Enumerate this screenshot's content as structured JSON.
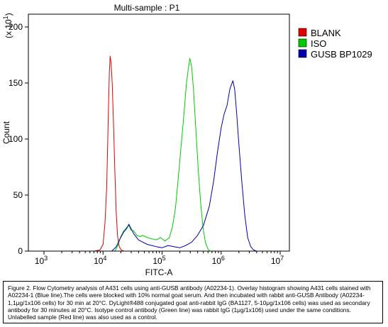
{
  "chart_data": {
    "type": "line",
    "title": "Multi-sample : P1",
    "xlabel": "FITC-A",
    "ylabel": "Count",
    "y_multiplier_label": "(x 10",
    "y_multiplier_exp": "1",
    "y_multiplier_close": ")",
    "x_scale": "log",
    "xlim": [
      1000,
      10000000
    ],
    "ylim": [
      0,
      200
    ],
    "y_ticks": [
      0,
      50,
      100,
      150,
      200
    ],
    "x_ticks": [
      {
        "value": 1000,
        "base": "10",
        "exp": "3"
      },
      {
        "value": 10000,
        "base": "10",
        "exp": "4"
      },
      {
        "value": 100000,
        "base": "10",
        "exp": "5"
      },
      {
        "value": 1000000,
        "base": "10",
        "exp": "6"
      },
      {
        "value": 10000000,
        "base": "10",
        "exp": "7"
      }
    ],
    "legend_position": "top-right",
    "series": [
      {
        "name": "BLANK",
        "color": "#e00000",
        "points": [
          [
            7100,
            0
          ],
          [
            8900,
            1
          ],
          [
            10000,
            6
          ],
          [
            10800,
            25
          ],
          [
            11500,
            55
          ],
          [
            12000,
            95
          ],
          [
            12400,
            130
          ],
          [
            12800,
            160
          ],
          [
            13200,
            174
          ],
          [
            13700,
            168
          ],
          [
            14300,
            150
          ],
          [
            15100,
            112
          ],
          [
            15900,
            70
          ],
          [
            16700,
            35
          ],
          [
            17600,
            14
          ],
          [
            18800,
            4
          ],
          [
            20400,
            1
          ],
          [
            22400,
            0
          ]
        ]
      },
      {
        "name": "ISO",
        "color": "#00cc00",
        "points": [
          [
            15800,
            0
          ],
          [
            17800,
            5
          ],
          [
            20000,
            13
          ],
          [
            22400,
            18
          ],
          [
            25100,
            21
          ],
          [
            27500,
            23
          ],
          [
            29500,
            19
          ],
          [
            33000,
            18
          ],
          [
            37500,
            14
          ],
          [
            42200,
            13
          ],
          [
            47300,
            14
          ],
          [
            56200,
            12
          ],
          [
            66800,
            11
          ],
          [
            79400,
            10
          ],
          [
            94400,
            12
          ],
          [
            112000,
            9
          ],
          [
            133000,
            12
          ],
          [
            150000,
            22
          ],
          [
            168000,
            38
          ],
          [
            188000,
            65
          ],
          [
            211000,
            95
          ],
          [
            237000,
            125
          ],
          [
            257000,
            148
          ],
          [
            278000,
            163
          ],
          [
            296000,
            172
          ],
          [
            316000,
            165
          ],
          [
            340000,
            145
          ],
          [
            370000,
            112
          ],
          [
            408000,
            75
          ],
          [
            447000,
            45
          ],
          [
            490000,
            22
          ],
          [
            540000,
            8
          ],
          [
            596000,
            2
          ],
          [
            650000,
            0
          ]
        ]
      },
      {
        "name": "GUSB BP1029",
        "color": "#0000aa",
        "points": [
          [
            14100,
            0
          ],
          [
            16800,
            4
          ],
          [
            19400,
            11
          ],
          [
            22400,
            17
          ],
          [
            25100,
            20
          ],
          [
            27400,
            24
          ],
          [
            29900,
            20
          ],
          [
            33500,
            15
          ],
          [
            39800,
            10
          ],
          [
            47300,
            8
          ],
          [
            56200,
            6
          ],
          [
            66800,
            5
          ],
          [
            79400,
            4
          ],
          [
            100000,
            3
          ],
          [
            126000,
            5
          ],
          [
            158000,
            4
          ],
          [
            200000,
            3
          ],
          [
            251000,
            5
          ],
          [
            316000,
            8
          ],
          [
            398000,
            14
          ],
          [
            501000,
            23
          ],
          [
            631000,
            40
          ],
          [
            750000,
            63
          ],
          [
            866000,
            88
          ],
          [
            1000000,
            110
          ],
          [
            1122000,
            122
          ],
          [
            1259000,
            130
          ],
          [
            1413000,
            145
          ],
          [
            1585000,
            152
          ],
          [
            1700000,
            144
          ],
          [
            1820000,
            125
          ],
          [
            2000000,
            95
          ],
          [
            2239000,
            62
          ],
          [
            2512000,
            32
          ],
          [
            2818000,
            12
          ],
          [
            3162000,
            4
          ],
          [
            3548000,
            1
          ],
          [
            3981000,
            0
          ]
        ]
      }
    ]
  },
  "caption": {
    "text": "Figure 2. Flow Cytometry analysis of A431 cells using anti-GUSB antibody (A02234-1). Overlay histogram showing A431 cells stained with A02234-1 (Blue line).The cells were blocked with 10% normal goat serum. And then incubated with rabbit anti-GUSB Antibody (A02234-1,1μg/1x106 cells) for 30 min at 20°C. DyLight®488 conjugated goat anti-rabbit IgG (BA1127, 5-10μg/1x106 cells) was used as secondary antibody for 30 minutes at 20°C. Isotype control antibody (Green line) was rabbit IgG (1μg/1x106) used under the same conditions. Unlabelled sample (Red line) was also used as a control."
  }
}
